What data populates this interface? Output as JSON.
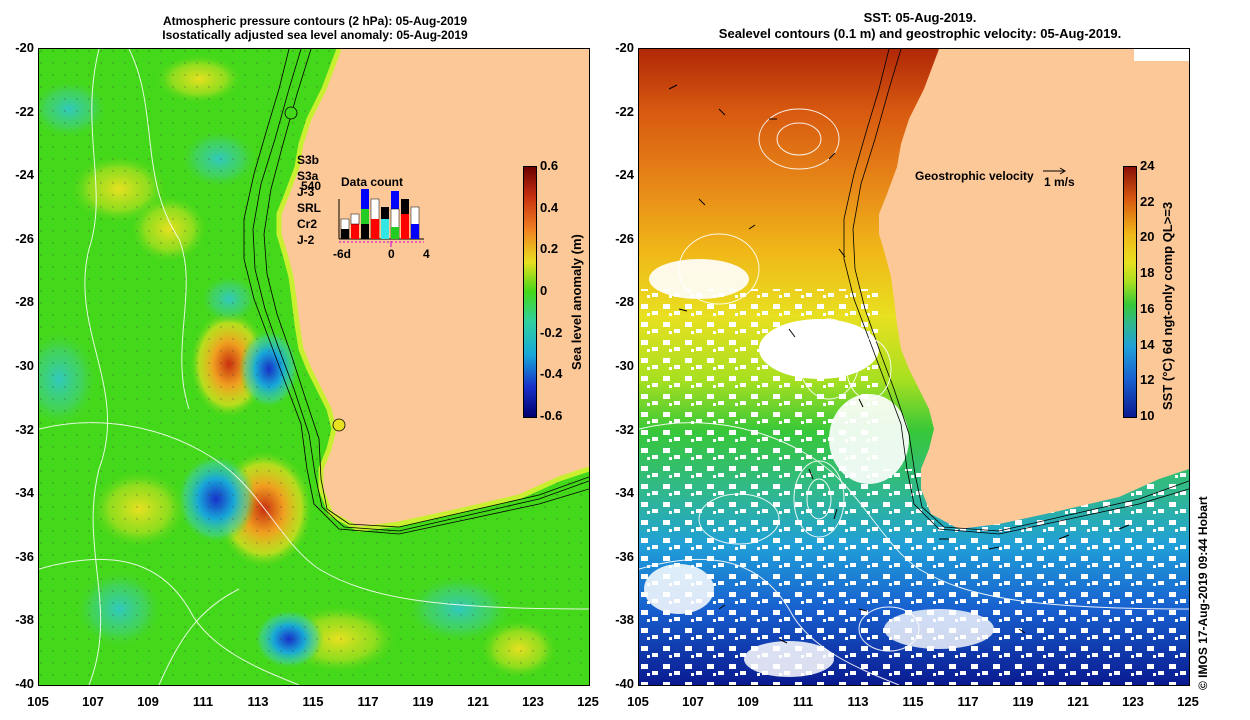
{
  "left_panel": {
    "title_line1": "Atmospheric pressure contours (2 hPa): 05-Aug-2019",
    "title_line2": "Isostatically adjusted sea level anomaly: 05-Aug-2019",
    "colorbar": {
      "label": "Sea level anomaly (m)",
      "ticks": [
        "0.6",
        "0.4",
        "0.2",
        "0",
        "-0.2",
        "-0.4",
        "-0.6"
      ]
    },
    "legend": {
      "items": [
        {
          "label": "S3b",
          "color": "#0000ff"
        },
        {
          "label": "S3a",
          "color": "#ffffff"
        },
        {
          "label": "J-3",
          "color": "#000000"
        },
        {
          "label": "SRL",
          "color": "#33e6e6"
        },
        {
          "label": "Cr2",
          "color": "#22cc22"
        },
        {
          "label": "J-2",
          "color": "#ff0000"
        }
      ],
      "count_label": "540",
      "datacount_title": "Data count",
      "datacount_ticks": [
        "-6d",
        "0",
        "4"
      ]
    }
  },
  "right_panel": {
    "title_line1": "SST: 05-Aug-2019.",
    "title_line2": "Sealevel contours (0.1 m) and geostrophic velocity: 05-Aug-2019.",
    "velocity_label": "Geostrophic velocity",
    "velocity_scale": "1 m/s",
    "colorbar": {
      "label": "SST (°C) 6d ngt-only comp QL>=3",
      "ticks": [
        "24",
        "22",
        "20",
        "18",
        "16",
        "14",
        "12",
        "10"
      ]
    }
  },
  "axes": {
    "yticks": [
      "-20",
      "-22",
      "-24",
      "-26",
      "-28",
      "-30",
      "-32",
      "-34",
      "-36",
      "-38",
      "-40"
    ],
    "xticks": [
      "105",
      "107",
      "109",
      "111",
      "113",
      "115",
      "117",
      "119",
      "121",
      "123",
      "125"
    ]
  },
  "credit": "© IMOS 17-Aug-2019 09:44 Hobart",
  "colors": {
    "land": "#fdc898",
    "sla_green": "#44d81a",
    "sst_orange": "#e87a10"
  }
}
